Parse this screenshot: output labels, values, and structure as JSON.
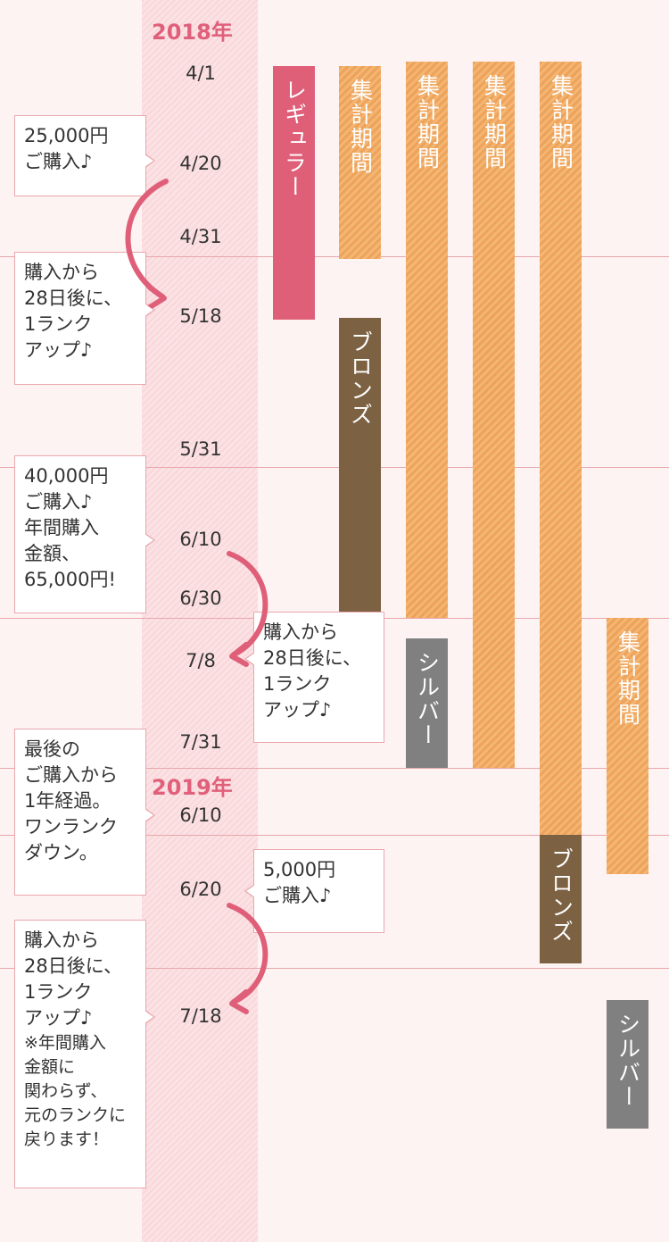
{
  "years": {
    "y2018": "2018年",
    "y2019": "2019年"
  },
  "dates": {
    "d0401": "4/1",
    "d0420": "4/20",
    "d0431": "4/31",
    "d0518": "5/18",
    "d0531": "5/31",
    "d0610": "6/10",
    "d0630": "6/30",
    "d0708": "7/8",
    "d0731": "7/31",
    "d0610b": "6/10",
    "d0620": "6/20",
    "d0718": "7/18"
  },
  "bars": {
    "regular": "レギュラー",
    "aggregation": "集計期間",
    "bronze": "ブロンズ",
    "silver": "シルバー"
  },
  "notes": {
    "purchase1": [
      "25,000円",
      "ご購入♪"
    ],
    "rankup1": [
      "購入から",
      "28日後に、",
      "1ランク",
      "アップ♪"
    ],
    "purchase2": [
      "40,000円",
      "ご購入♪",
      "年間購入",
      "金額、",
      "65,000円!"
    ],
    "rankup2": [
      "購入から",
      "28日後に、",
      "1ランク",
      "アップ♪"
    ],
    "rankdown": [
      "最後の",
      "ご購入から",
      "1年経過。",
      "ワンランク",
      "ダウン。"
    ],
    "purchase3": [
      "5,000円",
      "ご購入♪"
    ],
    "rankup3": [
      "購入から",
      "28日後に、",
      "1ランク",
      "アップ♪"
    ],
    "rankup3_note": [
      "※年間購入",
      "金額に",
      "関わらず、",
      "元のランクに",
      "戻ります！"
    ]
  },
  "colors": {
    "accent": "#e0607b",
    "regular": "#df5f79",
    "aggregation": "#f0a865",
    "bronze": "#7c6142",
    "silver": "#808080"
  }
}
